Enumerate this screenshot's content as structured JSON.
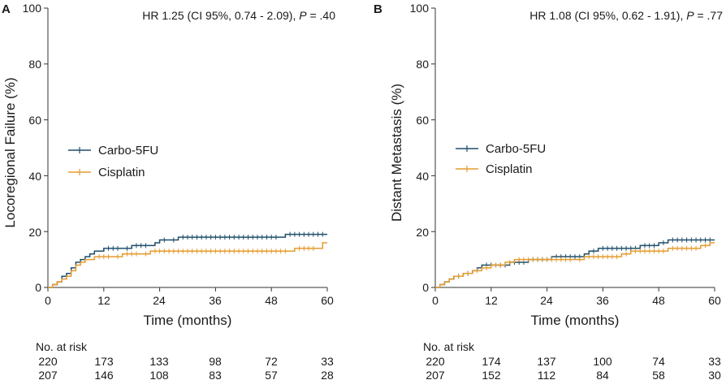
{
  "chart_data": [
    {
      "panel": "A",
      "type": "line",
      "subtype": "kaplan-meier-cumulative-incidence",
      "annotation": {
        "prefix": "HR 1.25 (CI 95%, 0.74 - 2.09), ",
        "p_label": "P",
        "p_rest": " = .40"
      },
      "xlabel": "Time (months)",
      "ylabel": "Locoregional Failure (%)",
      "xlim": [
        0,
        60
      ],
      "ylim": [
        0,
        100
      ],
      "xticks": [
        "0",
        "12",
        "24",
        "36",
        "48",
        "60"
      ],
      "yticks": [
        "0",
        "20",
        "40",
        "60",
        "80",
        "100"
      ],
      "legend": [
        "Carbo-5FU",
        "Cisplatin"
      ],
      "series": [
        {
          "name": "Carbo-5FU",
          "color": "#1f4e6b",
          "steps": [
            [
              0,
              0
            ],
            [
              1,
              1
            ],
            [
              2,
              2
            ],
            [
              3,
              4
            ],
            [
              4,
              5
            ],
            [
              5,
              7
            ],
            [
              6,
              9
            ],
            [
              7,
              10
            ],
            [
              8,
              11
            ],
            [
              9,
              12
            ],
            [
              10,
              13
            ],
            [
              12,
              14
            ],
            [
              16,
              14
            ],
            [
              18,
              15
            ],
            [
              22,
              15
            ],
            [
              23,
              16
            ],
            [
              24,
              17
            ],
            [
              26,
              17
            ],
            [
              28,
              18
            ],
            [
              50,
              18
            ],
            [
              51,
              19
            ],
            [
              60,
              19
            ]
          ],
          "censor": [
            13,
            14,
            15,
            17,
            19,
            20,
            21,
            25,
            27,
            29,
            30,
            31,
            32,
            33,
            34,
            35,
            36,
            37,
            38,
            39,
            40,
            41,
            42,
            43,
            44,
            45,
            46,
            47,
            48,
            49,
            52,
            53,
            54,
            55,
            56,
            57,
            58,
            59
          ]
        },
        {
          "name": "Cisplatin",
          "color": "#e69b2e",
          "steps": [
            [
              0,
              0
            ],
            [
              1,
              1
            ],
            [
              2,
              2
            ],
            [
              3,
              3
            ],
            [
              4,
              4
            ],
            [
              5,
              6
            ],
            [
              6,
              8
            ],
            [
              7,
              9
            ],
            [
              8,
              10
            ],
            [
              10,
              11
            ],
            [
              14,
              11
            ],
            [
              16,
              12
            ],
            [
              20,
              12
            ],
            [
              22,
              13
            ],
            [
              52,
              13
            ],
            [
              53,
              14
            ],
            [
              58,
              14
            ],
            [
              59,
              16
            ],
            [
              60,
              16
            ]
          ],
          "censor": [
            11,
            12,
            13,
            15,
            17,
            18,
            19,
            21,
            23,
            24,
            25,
            26,
            27,
            28,
            29,
            30,
            31,
            32,
            33,
            34,
            35,
            36,
            37,
            38,
            39,
            40,
            41,
            42,
            43,
            44,
            45,
            46,
            47,
            48,
            49,
            50,
            51,
            54,
            55,
            56,
            57
          ]
        }
      ],
      "risk_table": {
        "label": "No. at risk",
        "times": [
          0,
          12,
          24,
          36,
          48,
          60
        ],
        "rows": [
          [
            "220",
            "173",
            "133",
            "98",
            "72",
            "33"
          ],
          [
            "207",
            "146",
            "108",
            "83",
            "57",
            "28"
          ]
        ]
      }
    },
    {
      "panel": "B",
      "type": "line",
      "subtype": "kaplan-meier-cumulative-incidence",
      "annotation": {
        "prefix": "HR 1.08 (CI 95%, 0.62 - 1.91), ",
        "p_label": "P",
        "p_rest": " = .77"
      },
      "xlabel": "Time (months)",
      "ylabel": "Distant Metastasis (%)",
      "xlim": [
        0,
        60
      ],
      "ylim": [
        0,
        100
      ],
      "xticks": [
        "0",
        "12",
        "24",
        "36",
        "48",
        "60"
      ],
      "yticks": [
        "0",
        "20",
        "40",
        "60",
        "80",
        "100"
      ],
      "legend": [
        "Carbo-5FU",
        "Cisplatin"
      ],
      "series": [
        {
          "name": "Carbo-5FU",
          "color": "#1f4e6b",
          "steps": [
            [
              0,
              0
            ],
            [
              1,
              1
            ],
            [
              2,
              2
            ],
            [
              3,
              3
            ],
            [
              4,
              4
            ],
            [
              6,
              5
            ],
            [
              8,
              6
            ],
            [
              9,
              7
            ],
            [
              10,
              8
            ],
            [
              16,
              9
            ],
            [
              20,
              10
            ],
            [
              25,
              11
            ],
            [
              32,
              12
            ],
            [
              33,
              13
            ],
            [
              35,
              14
            ],
            [
              44,
              15
            ],
            [
              48,
              16
            ],
            [
              50,
              17
            ],
            [
              60,
              17
            ]
          ],
          "censor": [
            5,
            7,
            11,
            12,
            13,
            14,
            15,
            17,
            18,
            19,
            21,
            22,
            23,
            24,
            26,
            27,
            28,
            29,
            30,
            31,
            34,
            36,
            37,
            38,
            39,
            40,
            41,
            42,
            43,
            45,
            46,
            47,
            49,
            51,
            52,
            53,
            54,
            55,
            56,
            57,
            58,
            59
          ]
        },
        {
          "name": "Cisplatin",
          "color": "#e69b2e",
          "steps": [
            [
              0,
              0
            ],
            [
              1,
              1
            ],
            [
              2,
              2
            ],
            [
              3,
              3
            ],
            [
              4,
              4
            ],
            [
              6,
              5
            ],
            [
              8,
              6
            ],
            [
              10,
              7
            ],
            [
              12,
              8
            ],
            [
              15,
              9
            ],
            [
              17,
              10
            ],
            [
              30,
              10
            ],
            [
              32,
              11
            ],
            [
              40,
              12
            ],
            [
              42,
              13
            ],
            [
              50,
              14
            ],
            [
              57,
              15
            ],
            [
              59,
              16
            ],
            [
              60,
              16
            ]
          ],
          "censor": [
            5,
            7,
            9,
            11,
            13,
            14,
            16,
            18,
            19,
            20,
            21,
            22,
            23,
            24,
            25,
            26,
            27,
            28,
            29,
            31,
            33,
            34,
            35,
            36,
            37,
            38,
            39,
            41,
            43,
            44,
            45,
            46,
            47,
            48,
            49,
            51,
            52,
            53,
            54,
            55,
            56,
            58
          ]
        }
      ],
      "risk_table": {
        "label": "No. at risk",
        "times": [
          0,
          12,
          24,
          36,
          48,
          60
        ],
        "rows": [
          [
            "220",
            "174",
            "137",
            "100",
            "74",
            "33"
          ],
          [
            "207",
            "152",
            "112",
            "84",
            "58",
            "30"
          ]
        ]
      }
    }
  ]
}
